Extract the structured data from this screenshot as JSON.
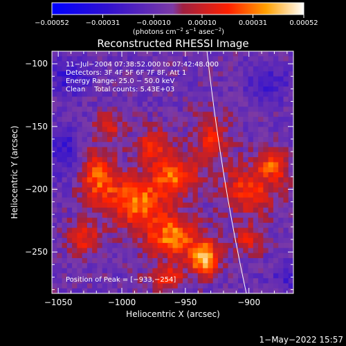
{
  "chart_data": {
    "type": "heatmap",
    "title": "Reconstructed RHESSI Image",
    "xlabel": "Heliocentric X (arcsec)",
    "ylabel": "Heliocentric Y (arcsec)",
    "xlim": [
      -1055,
      -865
    ],
    "ylim": [
      -283,
      -90
    ],
    "xticks": [
      -1050,
      -1000,
      -950,
      -900
    ],
    "yticks": [
      -100,
      -150,
      -200,
      -250
    ],
    "xtick_labels": [
      "−1050",
      "−1000",
      "−950",
      "−900"
    ],
    "ytick_labels": [
      "−100",
      "−150",
      "−200",
      "−250"
    ],
    "colorbar": {
      "min": -0.00052,
      "max": 0.00052,
      "ticks": [
        -0.00052,
        -0.00031,
        -0.0001,
        0.0001,
        0.00031,
        0.00052
      ],
      "tick_labels": [
        "−0.00052",
        "−0.00031",
        "−0.00010",
        "0.00010",
        "0.00031",
        "0.00052"
      ],
      "unit_parts": [
        "(photons cm",
        "−2",
        " s",
        "−1",
        " asec",
        "−2",
        ")"
      ]
    },
    "annotations": [
      "11−Jul−2004 07:38:52.000 to 07:42:48.000",
      "Detectors: 3F 4F 5F 6F 7F 8F, Att 1",
      "Energy Range: 25.0 − 50.0 keV",
      "Clean    Total counts: 5.43E+03"
    ],
    "peak_text": "Position of Peak = [−933,−254]",
    "peak": {
      "x": -933,
      "y": -254
    },
    "sources": [
      {
        "x": -988,
        "y": -210,
        "sx": 16,
        "sy": 14,
        "amp": 0.00038
      },
      {
        "x": -960,
        "y": -238,
        "sx": 14,
        "sy": 12,
        "amp": 0.0004
      },
      {
        "x": -935,
        "y": -255,
        "sx": 8,
        "sy": 9,
        "amp": 0.00052
      },
      {
        "x": -958,
        "y": -190,
        "sx": 12,
        "sy": 10,
        "amp": 0.00036
      },
      {
        "x": -975,
        "y": -165,
        "sx": 9,
        "sy": 9,
        "amp": 0.0003
      },
      {
        "x": -1018,
        "y": -190,
        "sx": 10,
        "sy": 14,
        "amp": 0.00034
      },
      {
        "x": -1030,
        "y": -240,
        "sx": 9,
        "sy": 9,
        "amp": 0.00026
      },
      {
        "x": -965,
        "y": -270,
        "sx": 10,
        "sy": 6,
        "amp": 0.00026
      },
      {
        "x": -900,
        "y": -200,
        "sx": 16,
        "sy": 14,
        "amp": 0.00028
      },
      {
        "x": -880,
        "y": -180,
        "sx": 8,
        "sy": 8,
        "amp": 0.00032
      },
      {
        "x": -930,
        "y": -160,
        "sx": 10,
        "sy": 14,
        "amp": 0.00024
      },
      {
        "x": -1010,
        "y": -150,
        "sx": 8,
        "sy": 8,
        "amp": 0.00022
      },
      {
        "x": -900,
        "y": -240,
        "sx": 8,
        "sy": 8,
        "amp": 0.00022
      },
      {
        "x": -1040,
        "y": -110,
        "sx": 10,
        "sy": 10,
        "amp": -0.0002
      },
      {
        "x": -885,
        "y": -115,
        "sx": 12,
        "sy": 10,
        "amp": -0.00014
      },
      {
        "x": -1045,
        "y": -170,
        "sx": 8,
        "sy": 14,
        "amp": -0.00018
      },
      {
        "x": -870,
        "y": -270,
        "sx": 10,
        "sy": 8,
        "amp": -0.00012
      }
    ],
    "limb_curve": [
      {
        "x": -933,
        "y": -90
      },
      {
        "x": -922,
        "y": -190
      },
      {
        "x": -902,
        "y": -283
      }
    ],
    "date_stamp": "1−May−2022 15:57"
  }
}
